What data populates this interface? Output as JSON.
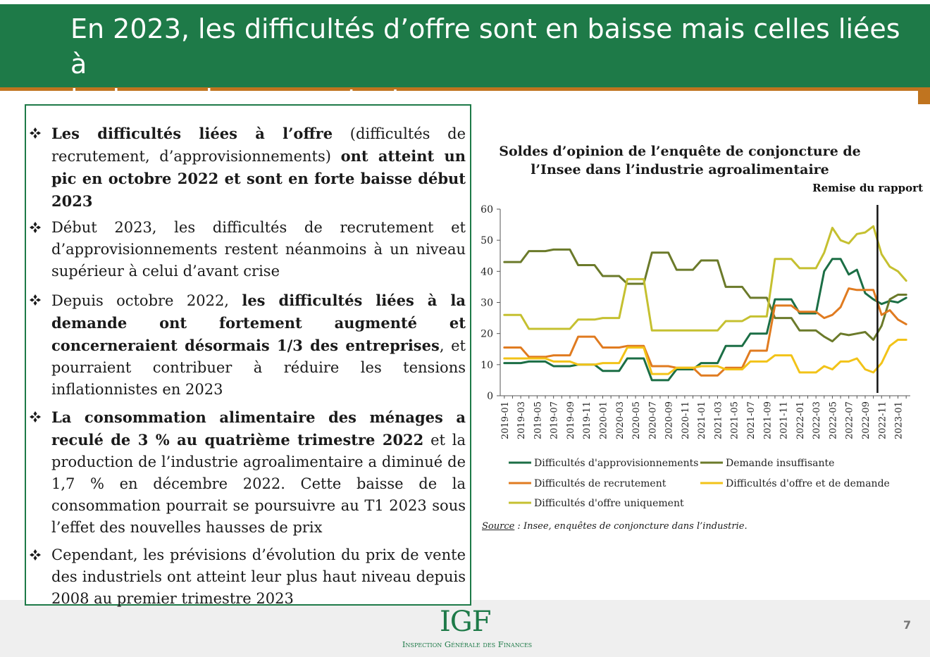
{
  "header": {
    "title_line1": "En 2023, les difficultés d’offre sont en baisse mais celles liées à",
    "title_line2": "la demande augmentent"
  },
  "bullets": [
    {
      "parts": [
        {
          "text": "Les difficultés liées à l’offre",
          "bold": true
        },
        {
          "text": " (difficultés de recrutement, d’approvisionnements) ",
          "bold": false
        },
        {
          "text": "ont atteint un pic en octobre 2022 et sont en forte baisse début 2023",
          "bold": true
        }
      ]
    },
    {
      "parts": [
        {
          "text": "Début 2023, les difficultés de recrutement et d’approvisionnements restent néanmoins à un niveau supérieur à celui d’avant crise",
          "bold": false
        }
      ]
    },
    {
      "parts": [
        {
          "text": "Depuis octobre 2022, ",
          "bold": false
        },
        {
          "text": "les difficultés liées à la demande ont fortement augmenté et concerneraient désormais 1/3 des entreprises",
          "bold": true
        },
        {
          "text": ", et pourraient contribuer à réduire les tensions inflationnistes en 2023",
          "bold": false
        }
      ]
    },
    {
      "parts": [
        {
          "text": "La consommation alimentaire des ménages a reculé de 3 % au quatrième trimestre 2022",
          "bold": true
        },
        {
          "text": " et la production de l’industrie agroalimentaire a diminué de 1,7 % en décembre 2022. Cette baisse de la consommation pourrait se poursuivre au T1 2023 sous l’effet des nouvelles hausses de prix",
          "bold": false
        }
      ]
    },
    {
      "parts": [
        {
          "text": "Cependant, les prévisions d’évolution du prix de vente des industriels ont atteint leur plus haut niveau depuis 2008 au premier trimestre 2023",
          "bold": false
        }
      ]
    }
  ],
  "chart_data": {
    "type": "line",
    "title": "Soldes d’opinion de l’enquête de conjoncture de l’Insee dans l’industrie agroalimentaire",
    "xlabel": "",
    "ylabel": "",
    "ylim": [
      0,
      60
    ],
    "yticks": [
      0,
      10,
      20,
      30,
      40,
      50,
      60
    ],
    "grid": false,
    "legend": "bottom",
    "x": [
      "2019-01",
      "2019-02",
      "2019-03",
      "2019-04",
      "2019-05",
      "2019-06",
      "2019-07",
      "2019-08",
      "2019-09",
      "2019-10",
      "2019-11",
      "2019-12",
      "2020-01",
      "2020-02",
      "2020-03",
      "2020-04",
      "2020-05",
      "2020-06",
      "2020-07",
      "2020-08",
      "2020-09",
      "2020-10",
      "2020-11",
      "2020-12",
      "2021-01",
      "2021-02",
      "2021-03",
      "2021-04",
      "2021-05",
      "2021-06",
      "2021-07",
      "2021-08",
      "2021-09",
      "2021-10",
      "2021-11",
      "2021-12",
      "2022-01",
      "2022-02",
      "2022-03",
      "2022-04",
      "2022-05",
      "2022-06",
      "2022-07",
      "2022-08",
      "2022-09",
      "2022-10",
      "2022-11",
      "2022-12",
      "2023-01",
      "2023-02"
    ],
    "xtick_labels": [
      "2019-01",
      "2019-03",
      "2019-05",
      "2019-07",
      "2019-09",
      "2019-11",
      "2020-01",
      "2020-03",
      "2020-05",
      "2020-07",
      "2020-09",
      "2020-11",
      "2021-01",
      "2021-03",
      "2021-05",
      "2021-07",
      "2021-09",
      "2021-11",
      "2022-01",
      "2022-03",
      "2022-05",
      "2022-07",
      "2022-09",
      "2022-11",
      "2023-01"
    ],
    "annotations": [
      {
        "x": "2022-10",
        "label": "Remise du rapport"
      }
    ],
    "series": [
      {
        "name": "Difficultés d'approvisionnements",
        "color": "#1b6e45",
        "values": [
          10.5,
          10.5,
          10.5,
          11,
          11,
          11,
          9.5,
          9.5,
          9.5,
          10,
          10,
          10,
          8,
          8,
          8,
          12,
          12,
          12,
          5,
          5,
          5,
          8.5,
          8.5,
          8.5,
          10.5,
          10.5,
          10.5,
          16,
          16,
          16,
          20,
          20,
          20,
          31,
          31,
          31,
          26.5,
          26.5,
          26.5,
          40,
          44,
          44,
          39,
          40.5,
          33,
          31,
          29.5,
          30.5,
          30,
          31.5
        ]
      },
      {
        "name": "Demande insuffisante",
        "color": "#6b7a2a",
        "values": [
          43,
          43,
          43,
          46.5,
          46.5,
          46.5,
          47,
          47,
          47,
          42,
          42,
          42,
          38.5,
          38.5,
          38.5,
          36,
          36,
          36,
          46,
          46,
          46,
          40.5,
          40.5,
          40.5,
          43.5,
          43.5,
          43.5,
          35,
          35,
          35,
          31.5,
          31.5,
          31.5,
          25,
          25,
          25,
          21,
          21,
          21,
          19,
          17.5,
          20,
          19.5,
          20,
          20.5,
          18,
          22.5,
          31,
          32.5,
          32.5
        ]
      },
      {
        "name": "Difficultés de recrutement",
        "color": "#e07b20",
        "values": [
          15.5,
          15.5,
          15.5,
          12.5,
          12.5,
          12.5,
          13,
          13,
          13,
          19,
          19,
          19,
          15.5,
          15.5,
          15.5,
          16,
          16,
          16,
          9.5,
          9.5,
          9.5,
          9,
          9,
          9,
          6.5,
          6.5,
          6.5,
          9,
          9,
          9,
          14.5,
          14.5,
          14.5,
          29,
          29,
          29,
          27,
          27,
          27,
          25,
          26,
          28.5,
          34.5,
          34,
          34,
          34,
          26,
          27.5,
          24.5,
          23
        ]
      },
      {
        "name": "Difficultés d'offre et de demande",
        "color": "#f2c318",
        "values": [
          12,
          12,
          12,
          12,
          12,
          12,
          11,
          11,
          11,
          10,
          10,
          10,
          10.5,
          10.5,
          10.5,
          15.5,
          15.5,
          15.5,
          7,
          7,
          7,
          9,
          9,
          9,
          9.5,
          9.5,
          9.5,
          8.5,
          8.5,
          8.5,
          11,
          11,
          11,
          13,
          13,
          13,
          7.5,
          7.5,
          7.5,
          9.5,
          8.5,
          11,
          11,
          12,
          8.5,
          7.5,
          10.5,
          16,
          18,
          18
        ]
      },
      {
        "name": "Difficultés d'offre uniquement",
        "color": "#c5c030",
        "values": [
          26,
          26,
          26,
          21.5,
          21.5,
          21.5,
          21.5,
          21.5,
          21.5,
          24.5,
          24.5,
          24.5,
          25,
          25,
          25,
          37.5,
          37.5,
          37.5,
          21,
          21,
          21,
          21,
          21,
          21,
          21,
          21,
          21,
          24,
          24,
          24,
          25.5,
          25.5,
          25.5,
          44,
          44,
          44,
          41,
          41,
          41,
          46,
          54,
          50,
          49,
          52,
          52.5,
          54.5,
          45.5,
          41.5,
          40,
          37
        ]
      }
    ]
  },
  "source": {
    "label": "Source",
    "text": " : Insee, enquêtes de conjoncture dans l’industrie."
  },
  "footer": {
    "logo_letters": "IGF",
    "logo_subtitle": "Inspection Générale des Finances",
    "page_number": "7"
  },
  "colors": {
    "header_bg": "#1e7a48",
    "header_rule": "#c0741f",
    "footer_bg": "#efefef"
  }
}
